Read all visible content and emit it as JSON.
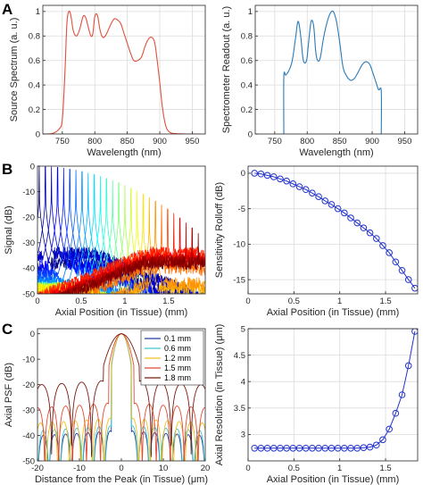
{
  "panel_labels": {
    "a": "A",
    "b": "B",
    "c": "C"
  },
  "chart_data": [
    {
      "id": "a_left",
      "type": "line",
      "xlabel": "Wavelength (nm)",
      "ylabel": "Source Spectrum (a. u.)",
      "xlim": [
        720,
        970
      ],
      "ylim": [
        0,
        1.05
      ],
      "grid": true,
      "xticks": [
        750,
        800,
        850,
        900,
        950
      ],
      "yticks": [
        0,
        0.2,
        0.4,
        0.6,
        0.8,
        1
      ],
      "xticklabels": [
        "750",
        "800",
        "850",
        "900",
        "950"
      ],
      "yticklabels": [
        "0",
        "0.2",
        "0.4",
        "0.6",
        "0.8",
        "1"
      ],
      "series": [
        {
          "color": "#e0503a",
          "x": [
            725,
            735,
            745,
            750,
            754,
            757,
            760,
            763,
            767,
            772,
            777,
            782,
            786,
            790,
            794,
            797,
            800,
            804,
            808,
            812,
            816,
            820,
            825,
            830,
            835,
            840,
            845,
            850,
            855,
            860,
            866,
            872,
            877,
            882,
            887,
            892,
            896,
            900,
            904,
            909,
            915,
            925,
            940,
            960
          ],
          "y": [
            0,
            0.005,
            0.04,
            0.12,
            0.5,
            0.9,
            1.0,
            0.97,
            0.84,
            0.8,
            0.86,
            0.96,
            0.95,
            0.87,
            0.8,
            0.82,
            0.96,
            0.97,
            0.85,
            0.79,
            0.8,
            0.84,
            0.9,
            0.94,
            0.93,
            0.9,
            0.82,
            0.74,
            0.66,
            0.6,
            0.6,
            0.63,
            0.71,
            0.77,
            0.79,
            0.75,
            0.6,
            0.42,
            0.22,
            0.07,
            0.015,
            0.003,
            0,
            0
          ]
        }
      ]
    },
    {
      "id": "a_right",
      "type": "line",
      "xlabel": "Wavelength (nm)",
      "ylabel": "Spectrometer Readout (a. u.)",
      "xlim": [
        720,
        970
      ],
      "ylim": [
        0,
        1.05
      ],
      "grid": true,
      "xticks": [
        750,
        800,
        850,
        900,
        950
      ],
      "yticks": [
        0,
        0.2,
        0.4,
        0.6,
        0.8,
        1
      ],
      "xticklabels": [
        "750",
        "800",
        "850",
        "900",
        "950"
      ],
      "yticklabels": [
        "0",
        "0.2",
        "0.4",
        "0.6",
        "0.8",
        "1"
      ],
      "series": [
        {
          "color": "#2a7ab8",
          "x": [
            764,
            764,
            767,
            772,
            777,
            782,
            786,
            790,
            794,
            799,
            802,
            806,
            810,
            813,
            816,
            820,
            825,
            830,
            835,
            840,
            845,
            850,
            855,
            860,
            866,
            872,
            878,
            884,
            890,
            896,
            901,
            906,
            910,
            914,
            914
          ],
          "y": [
            0,
            0.47,
            0.48,
            0.52,
            0.6,
            0.78,
            0.92,
            0.8,
            0.6,
            0.6,
            0.74,
            0.92,
            0.88,
            0.68,
            0.6,
            0.62,
            0.78,
            0.9,
            0.98,
            1.0,
            0.92,
            0.75,
            0.55,
            0.48,
            0.44,
            0.45,
            0.5,
            0.56,
            0.59,
            0.57,
            0.5,
            0.42,
            0.36,
            0.35,
            0
          ]
        }
      ]
    },
    {
      "id": "b_left",
      "type": "line",
      "xlabel": "Axial Position (in Tissue) (mm)",
      "ylabel": "Signal (dB)",
      "xlim": [
        0,
        1.92
      ],
      "ylim": [
        -50,
        0
      ],
      "grid": false,
      "xticks": [
        0,
        0.5,
        1,
        1.5
      ],
      "yticks": [
        -50,
        -40,
        -30,
        -20,
        -10,
        0
      ],
      "xticklabels": [
        "0",
        "0.5",
        "1",
        "1.5"
      ],
      "yticklabels": [
        "-50",
        "-40",
        "-30",
        "-20",
        "-10",
        "0"
      ],
      "peak_positions_mm": [
        0.02,
        0.09,
        0.16,
        0.23,
        0.3,
        0.37,
        0.44,
        0.51,
        0.58,
        0.65,
        0.72,
        0.79,
        0.86,
        0.93,
        1.0,
        1.07,
        1.14,
        1.21,
        1.28,
        1.35,
        1.42,
        1.49,
        1.56,
        1.63,
        1.7,
        1.77,
        1.84
      ],
      "peak_levels_db": [
        0,
        -0.1,
        -0.3,
        -0.5,
        -0.8,
        -1.2,
        -1.6,
        -2.1,
        -2.7,
        -3.3,
        -4.0,
        -4.8,
        -5.6,
        -6.5,
        -7.5,
        -8.6,
        -9.8,
        -11.0,
        -12.3,
        -13.7,
        -15.2,
        -16.8,
        -18.5,
        -20.3,
        -22.2,
        -24.2,
        -26.3
      ],
      "noise_floor_db": [
        -38,
        -34,
        -35,
        -39,
        -41,
        -43,
        -45,
        -46,
        -47,
        -48,
        -48,
        -48,
        -48,
        -48,
        -48,
        -48,
        -48,
        -48,
        -48,
        -46,
        -40,
        -36,
        -34,
        -36,
        -37,
        -37,
        -38
      ]
    },
    {
      "id": "b_right",
      "type": "line",
      "xlabel": "Axial Position (in Tissue) (mm)",
      "ylabel": "Sensitivity Rolloff (dB)",
      "xlim": [
        0,
        1.85
      ],
      "ylim": [
        -17,
        1
      ],
      "grid": true,
      "xticks": [
        0,
        0.5,
        1,
        1.5
      ],
      "yticks": [
        -15,
        -10,
        -5,
        0
      ],
      "xticklabels": [
        "0",
        "0.5",
        "1",
        "1.5"
      ],
      "yticklabels": [
        "-15",
        "-10",
        "-5",
        "0"
      ],
      "series": [
        {
          "color": "#2233cc",
          "marker": "circle",
          "x": [
            0.07,
            0.14,
            0.21,
            0.28,
            0.35,
            0.42,
            0.49,
            0.56,
            0.63,
            0.7,
            0.77,
            0.84,
            0.91,
            0.98,
            1.05,
            1.12,
            1.19,
            1.26,
            1.33,
            1.4,
            1.47,
            1.54,
            1.61,
            1.68,
            1.75,
            1.82
          ],
          "y": [
            0,
            -0.1,
            -0.3,
            -0.5,
            -0.8,
            -1.1,
            -1.5,
            -1.9,
            -2.3,
            -2.8,
            -3.3,
            -3.9,
            -4.4,
            -5.0,
            -5.6,
            -6.3,
            -7.0,
            -7.7,
            -8.4,
            -9.2,
            -10.2,
            -11.2,
            -12.5,
            -13.7,
            -15.0,
            -16.2
          ]
        }
      ]
    },
    {
      "id": "c_left",
      "type": "line",
      "xlabel": "Distance from the Peak (in Tissue) (μm)",
      "ylabel": "Axial PSF (dB)",
      "xlim": [
        -20,
        20
      ],
      "ylim": [
        -50,
        2
      ],
      "grid": false,
      "xticks": [
        -20,
        -10,
        0,
        10,
        20
      ],
      "yticks": [
        -50,
        -40,
        -30,
        -20,
        -10,
        0
      ],
      "xticklabels": [
        "-20",
        "-10",
        "0",
        "10",
        "20"
      ],
      "yticklabels": [
        "-50",
        "-40",
        "-30",
        "-20",
        "-10",
        "0"
      ],
      "legend": "top-right",
      "series": [
        {
          "name": "0.1 mm",
          "color": "#1f3ea8",
          "sidelobe_db": -38,
          "mainlobe_width_um": 2.8
        },
        {
          "name": "0.6 mm",
          "color": "#3fc6cc",
          "sidelobe_db": -36,
          "mainlobe_width_um": 2.8
        },
        {
          "name": "1.2 mm",
          "color": "#f0c020",
          "sidelobe_db": -33,
          "mainlobe_width_um": 2.9
        },
        {
          "name": "1.5 mm",
          "color": "#e04a32",
          "sidelobe_db": -27,
          "mainlobe_width_um": 3.5
        },
        {
          "name": "1.8 mm",
          "color": "#7a1a10",
          "sidelobe_db": -18,
          "mainlobe_width_um": 5.0
        }
      ]
    },
    {
      "id": "c_right",
      "type": "line",
      "xlabel": "Axial Position (in Tissue) (mm)",
      "ylabel": "Axial Resolution (in Tissue) (μm)",
      "xlim": [
        0,
        1.85
      ],
      "ylim": [
        2.5,
        5
      ],
      "grid": true,
      "xticks": [
        0,
        0.5,
        1,
        1.5
      ],
      "yticks": [
        3,
        3.5,
        4,
        4.5,
        5
      ],
      "xticklabels": [
        "0",
        "0.5",
        "1",
        "1.5"
      ],
      "yticklabels": [
        "3",
        "3.5",
        "4",
        "4.5",
        "5"
      ],
      "series": [
        {
          "color": "#2233cc",
          "marker": "circle",
          "x": [
            0.07,
            0.14,
            0.21,
            0.28,
            0.35,
            0.42,
            0.49,
            0.56,
            0.63,
            0.7,
            0.77,
            0.84,
            0.91,
            0.98,
            1.05,
            1.12,
            1.19,
            1.26,
            1.33,
            1.4,
            1.47,
            1.54,
            1.61,
            1.68,
            1.75,
            1.82
          ],
          "y": [
            2.74,
            2.74,
            2.74,
            2.74,
            2.74,
            2.74,
            2.74,
            2.74,
            2.74,
            2.74,
            2.74,
            2.74,
            2.74,
            2.74,
            2.74,
            2.74,
            2.74,
            2.75,
            2.76,
            2.8,
            2.9,
            3.1,
            3.4,
            3.75,
            4.3,
            4.95
          ]
        }
      ]
    }
  ]
}
